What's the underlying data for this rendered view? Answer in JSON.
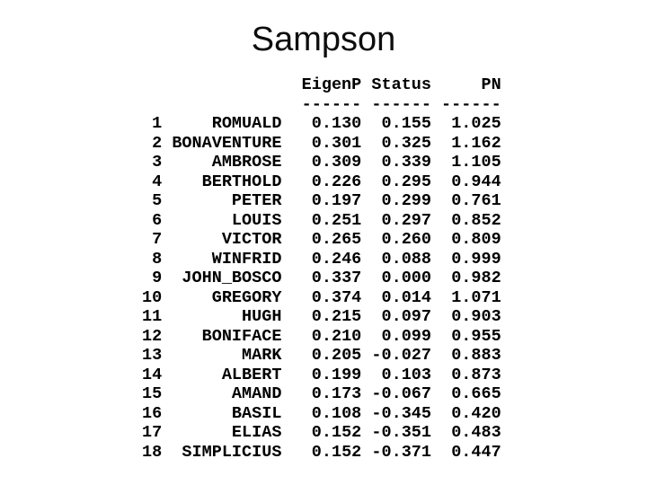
{
  "slide_title": "Sampson",
  "colors": {
    "text": "#000000",
    "background": "#ffffff"
  },
  "table": {
    "col_headers": [
      "EigenP",
      "Status",
      "PN"
    ],
    "rule": "------ ------ ------",
    "rows": [
      {
        "n": "1",
        "name": "ROMUALD",
        "eigenp": "0.130",
        "status": "0.155",
        "pn": "1.025"
      },
      {
        "n": "2",
        "name": "BONAVENTURE",
        "eigenp": "0.301",
        "status": "0.325",
        "pn": "1.162"
      },
      {
        "n": "3",
        "name": "AMBROSE",
        "eigenp": "0.309",
        "status": "0.339",
        "pn": "1.105"
      },
      {
        "n": "4",
        "name": "BERTHOLD",
        "eigenp": "0.226",
        "status": "0.295",
        "pn": "0.944"
      },
      {
        "n": "5",
        "name": "PETER",
        "eigenp": "0.197",
        "status": "0.299",
        "pn": "0.761"
      },
      {
        "n": "6",
        "name": "LOUIS",
        "eigenp": "0.251",
        "status": "0.297",
        "pn": "0.852"
      },
      {
        "n": "7",
        "name": "VICTOR",
        "eigenp": "0.265",
        "status": "0.260",
        "pn": "0.809"
      },
      {
        "n": "8",
        "name": "WINFRID",
        "eigenp": "0.246",
        "status": "0.088",
        "pn": "0.999"
      },
      {
        "n": "9",
        "name": "JOHN_BOSCO",
        "eigenp": "0.337",
        "status": "0.000",
        "pn": "0.982"
      },
      {
        "n": "10",
        "name": "GREGORY",
        "eigenp": "0.374",
        "status": "0.014",
        "pn": "1.071"
      },
      {
        "n": "11",
        "name": "HUGH",
        "eigenp": "0.215",
        "status": "0.097",
        "pn": "0.903"
      },
      {
        "n": "12",
        "name": "BONIFACE",
        "eigenp": "0.210",
        "status": "0.099",
        "pn": "0.955"
      },
      {
        "n": "13",
        "name": "MARK",
        "eigenp": "0.205",
        "status": "-0.027",
        "pn": "0.883"
      },
      {
        "n": "14",
        "name": "ALBERT",
        "eigenp": "0.199",
        "status": "0.103",
        "pn": "0.873"
      },
      {
        "n": "15",
        "name": "AMAND",
        "eigenp": "0.173",
        "status": "-0.067",
        "pn": "0.665"
      },
      {
        "n": "16",
        "name": "BASIL",
        "eigenp": "0.108",
        "status": "-0.345",
        "pn": "0.420"
      },
      {
        "n": "17",
        "name": "ELIAS",
        "eigenp": "0.152",
        "status": "-0.351",
        "pn": "0.483"
      },
      {
        "n": "18",
        "name": "SIMPLICIUS",
        "eigenp": "0.152",
        "status": "-0.371",
        "pn": "0.447"
      }
    ]
  }
}
